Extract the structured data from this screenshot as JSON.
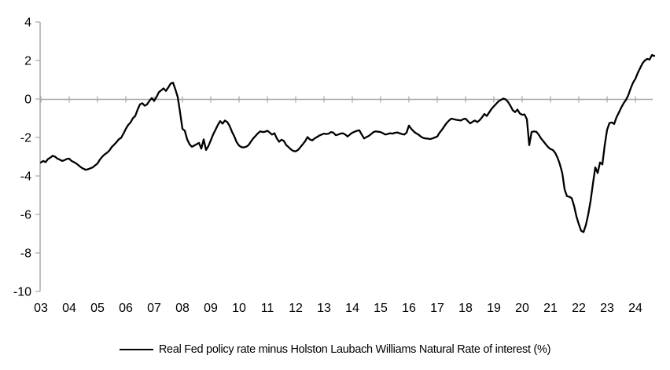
{
  "colors": {
    "axis": "#a6a6a6",
    "series_line": "#000000",
    "text": "#000000",
    "background": "#ffffff"
  },
  "legend": {
    "label": "Real Fed policy rate minus Holston Laubach Williams Natural Rate of interest (%)"
  },
  "chart_data": {
    "type": "line",
    "title": "",
    "xlabel": "",
    "ylabel": "",
    "grid": "zero-line-only",
    "legend_position": "bottom-center",
    "ylim": [
      -10,
      4
    ],
    "y_tick_values": [
      4,
      2,
      0,
      -2,
      -4,
      -6,
      -8,
      -10
    ],
    "y_tick_labels": [
      "4",
      "2",
      "0",
      "-2",
      "-4",
      "-6",
      "-8",
      "-10"
    ],
    "x_tick_years": [
      2003,
      2004,
      2005,
      2006,
      2007,
      2008,
      2009,
      2010,
      2011,
      2012,
      2013,
      2014,
      2015,
      2016,
      2017,
      2018,
      2019,
      2020,
      2021,
      2022,
      2023,
      2024
    ],
    "x_tick_labels": [
      "03",
      "04",
      "05",
      "06",
      "07",
      "08",
      "09",
      "10",
      "11",
      "12",
      "13",
      "14",
      "15",
      "16",
      "17",
      "18",
      "19",
      "20",
      "21",
      "22",
      "23",
      "24"
    ],
    "series": [
      {
        "name": "Real Fed policy rate minus Holston Laubach Williams Natural Rate of interest (%)",
        "color": "#000000",
        "start_year": 2003,
        "interval_months": 1,
        "values": [
          -3.3,
          -3.22,
          -3.28,
          -3.12,
          -3.05,
          -2.95,
          -3.0,
          -3.1,
          -3.15,
          -3.22,
          -3.18,
          -3.12,
          -3.1,
          -3.22,
          -3.28,
          -3.35,
          -3.45,
          -3.55,
          -3.62,
          -3.68,
          -3.65,
          -3.6,
          -3.55,
          -3.45,
          -3.35,
          -3.15,
          -3.0,
          -2.88,
          -2.8,
          -2.68,
          -2.5,
          -2.38,
          -2.25,
          -2.1,
          -2.02,
          -1.8,
          -1.55,
          -1.35,
          -1.22,
          -1.0,
          -0.88,
          -0.55,
          -0.28,
          -0.22,
          -0.35,
          -0.28,
          -0.1,
          0.05,
          -0.1,
          0.1,
          0.35,
          0.45,
          0.55,
          0.42,
          0.6,
          0.8,
          0.85,
          0.5,
          0.1,
          -0.7,
          -1.55,
          -1.65,
          -2.1,
          -2.35,
          -2.48,
          -2.42,
          -2.35,
          -2.28,
          -2.58,
          -2.1,
          -2.65,
          -2.45,
          -2.15,
          -1.85,
          -1.6,
          -1.35,
          -1.15,
          -1.28,
          -1.12,
          -1.2,
          -1.4,
          -1.7,
          -1.95,
          -2.25,
          -2.42,
          -2.5,
          -2.52,
          -2.48,
          -2.4,
          -2.22,
          -2.05,
          -1.92,
          -1.78,
          -1.68,
          -1.72,
          -1.7,
          -1.65,
          -1.75,
          -1.85,
          -1.78,
          -2.05,
          -2.22,
          -2.12,
          -2.18,
          -2.4,
          -2.5,
          -2.62,
          -2.7,
          -2.72,
          -2.65,
          -2.5,
          -2.35,
          -2.2,
          -1.98,
          -2.1,
          -2.15,
          -2.05,
          -1.98,
          -1.9,
          -1.85,
          -1.8,
          -1.82,
          -1.8,
          -1.72,
          -1.75,
          -1.88,
          -1.85,
          -1.8,
          -1.78,
          -1.85,
          -1.95,
          -1.85,
          -1.75,
          -1.7,
          -1.65,
          -1.63,
          -1.85,
          -2.05,
          -1.98,
          -1.92,
          -1.82,
          -1.72,
          -1.68,
          -1.7,
          -1.72,
          -1.78,
          -1.85,
          -1.82,
          -1.78,
          -1.8,
          -1.76,
          -1.74,
          -1.78,
          -1.82,
          -1.85,
          -1.75,
          -1.38,
          -1.55,
          -1.68,
          -1.78,
          -1.85,
          -1.95,
          -2.02,
          -2.05,
          -2.06,
          -2.08,
          -2.05,
          -2.0,
          -1.95,
          -1.75,
          -1.6,
          -1.42,
          -1.25,
          -1.12,
          -1.02,
          -1.05,
          -1.08,
          -1.1,
          -1.12,
          -1.05,
          -1.02,
          -1.15,
          -1.27,
          -1.18,
          -1.12,
          -1.2,
          -1.1,
          -0.95,
          -0.78,
          -0.88,
          -0.7,
          -0.52,
          -0.38,
          -0.25,
          -0.12,
          -0.05,
          0.02,
          -0.02,
          -0.15,
          -0.35,
          -0.58,
          -0.68,
          -0.55,
          -0.75,
          -0.82,
          -0.8,
          -1.05,
          -2.4,
          -1.72,
          -1.68,
          -1.7,
          -1.85,
          -2.05,
          -2.2,
          -2.35,
          -2.5,
          -2.6,
          -2.65,
          -2.8,
          -3.05,
          -3.4,
          -3.85,
          -4.7,
          -5.05,
          -5.08,
          -5.15,
          -5.55,
          -6.1,
          -6.5,
          -6.85,
          -6.92,
          -6.55,
          -6.0,
          -5.3,
          -4.4,
          -3.55,
          -3.85,
          -3.3,
          -3.4,
          -2.4,
          -1.6,
          -1.25,
          -1.22,
          -1.3,
          -0.95,
          -0.7,
          -0.45,
          -0.22,
          -0.05,
          0.2,
          0.55,
          0.85,
          1.05,
          1.35,
          1.6,
          1.85,
          2.0,
          2.08,
          2.05,
          2.28,
          2.24
        ]
      }
    ]
  }
}
